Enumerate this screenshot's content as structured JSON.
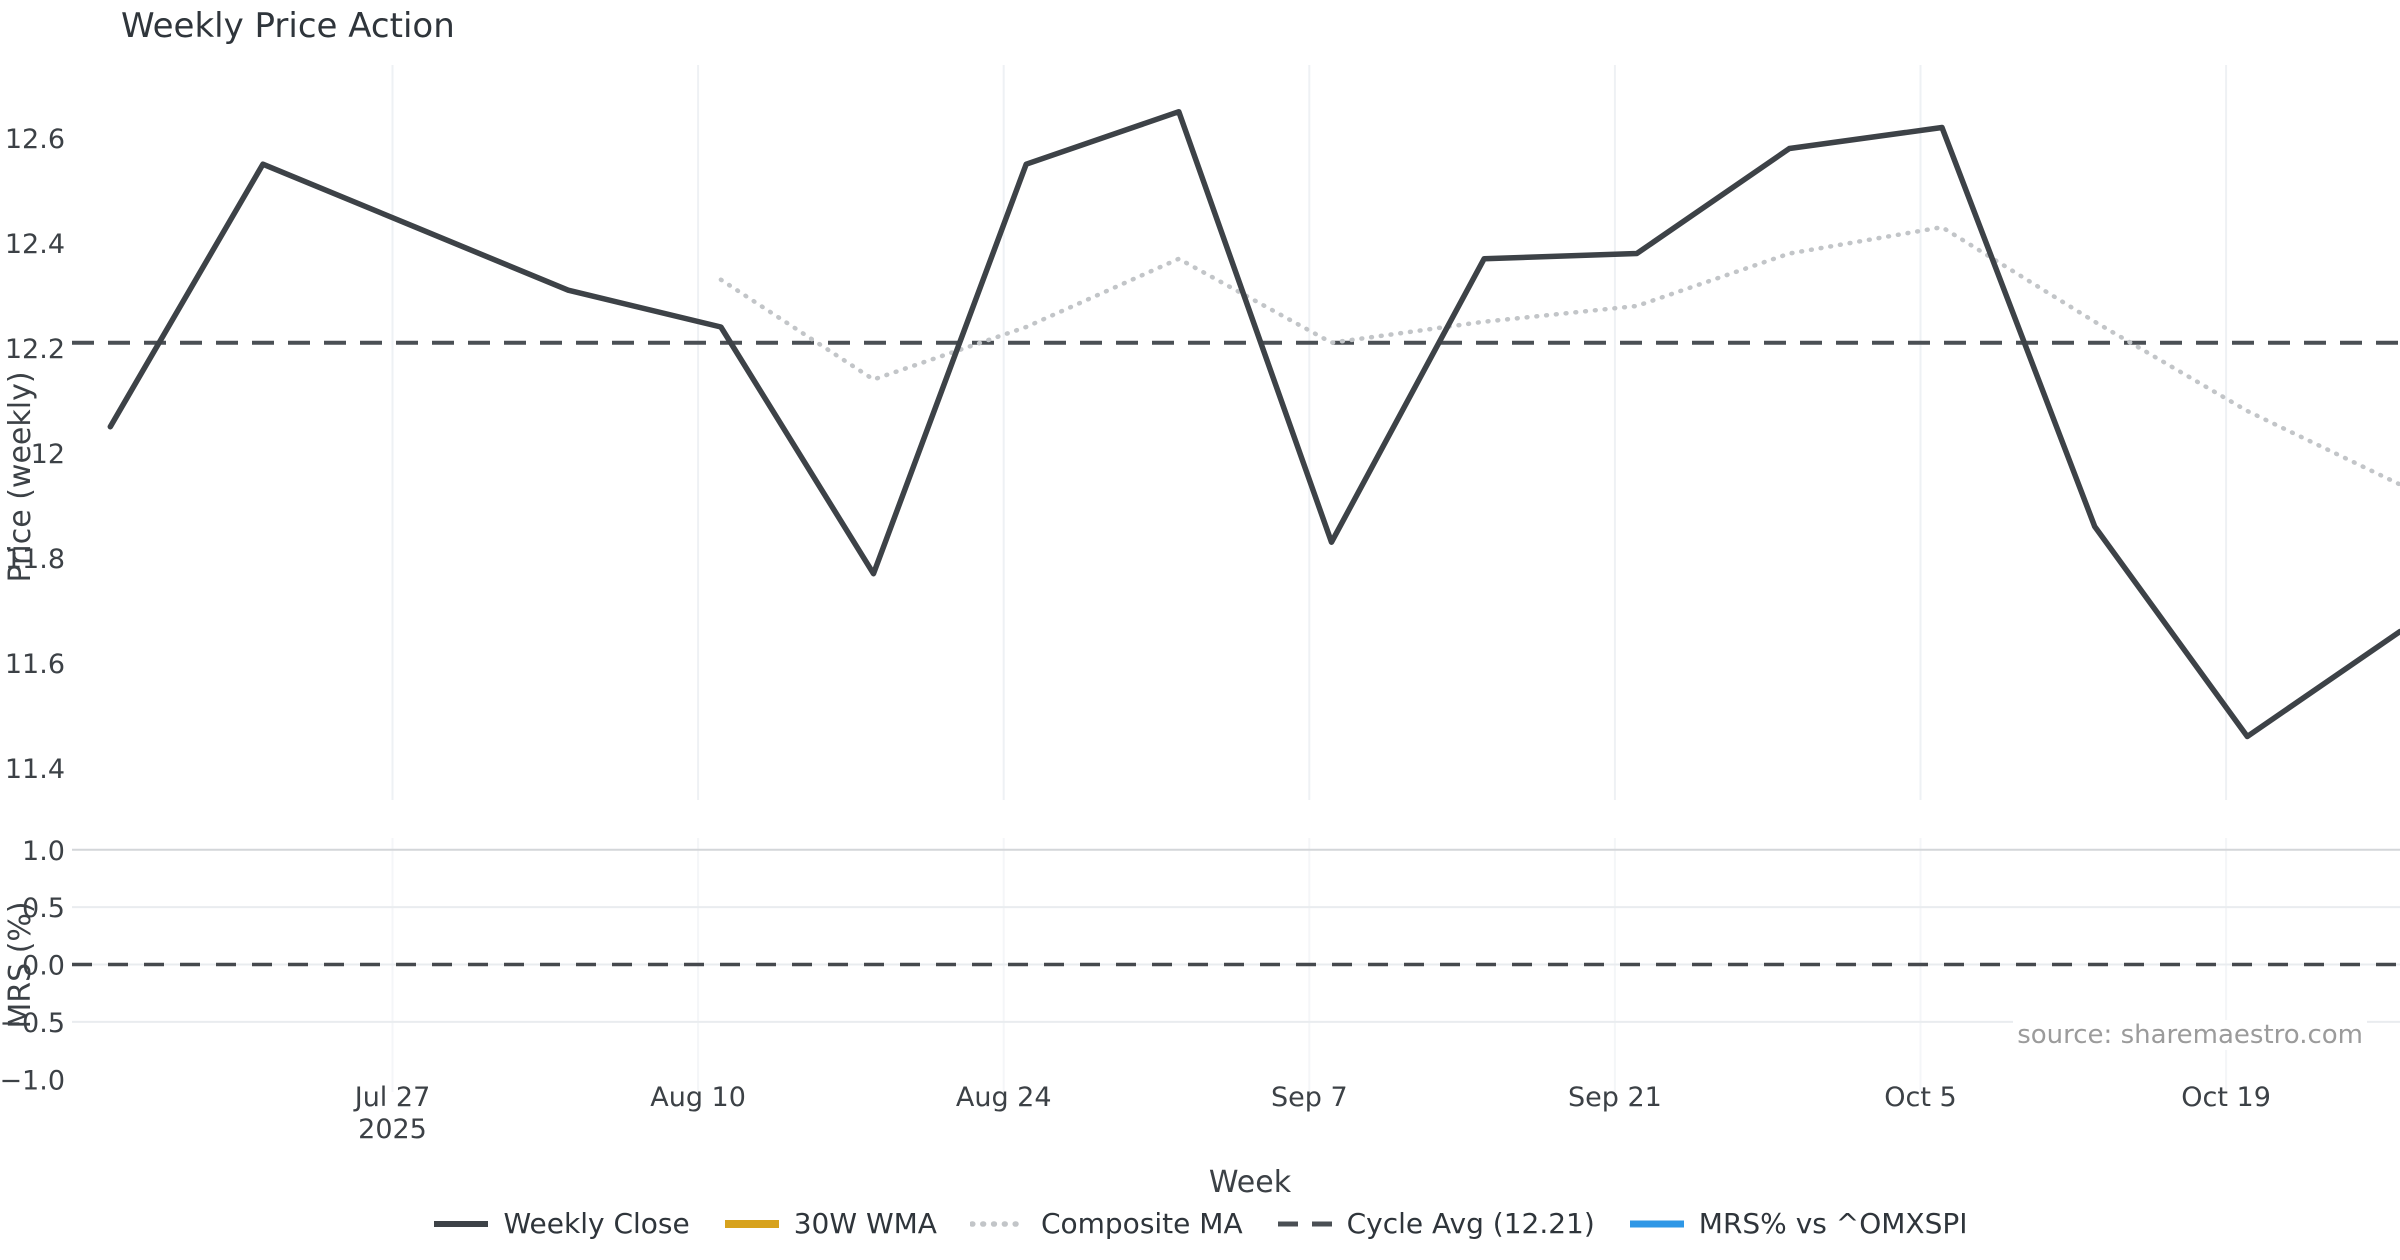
{
  "title": "Weekly Price Action",
  "source_note": "source: sharemaestro.com",
  "x_axis": {
    "label": "Week",
    "ticks": [
      {
        "label": "Jul 27",
        "sublabel": "2025"
      },
      {
        "label": "Aug 10"
      },
      {
        "label": "Aug 24"
      },
      {
        "label": "Sep 7"
      },
      {
        "label": "Sep 21"
      },
      {
        "label": "Oct 5"
      },
      {
        "label": "Oct 19"
      }
    ]
  },
  "price_axis": {
    "label": "Price (weekly)",
    "tick_labels": [
      "12.6",
      "12.4",
      "12.2",
      "12",
      "11.8",
      "11.6",
      "11.4"
    ],
    "tick_values": [
      12.6,
      12.4,
      12.2,
      12.0,
      11.8,
      11.6,
      11.4
    ]
  },
  "mrs_axis": {
    "label": "MRS (%)",
    "tick_labels": [
      "1.0",
      "0.5",
      "0.0",
      "−0.5",
      "−1.0"
    ],
    "tick_values": [
      1.0,
      0.5,
      0.0,
      -0.5,
      -1.0
    ]
  },
  "legend": [
    {
      "label": "Weekly Close",
      "type": "solid",
      "color": "#3d4247",
      "weight": 6
    },
    {
      "label": "30W WMA",
      "type": "solid",
      "color": "#d7a21d",
      "weight": 8
    },
    {
      "label": "Composite MA",
      "type": "dotted",
      "color": "#c2c5c8",
      "weight": 5.5
    },
    {
      "label": "Cycle Avg (12.21)",
      "type": "dashed",
      "color": "#4a4f54",
      "weight": 5
    },
    {
      "label": "MRS% vs ^OMXSPI",
      "type": "solid",
      "color": "#2e97e6",
      "weight": 7
    }
  ],
  "colors": {
    "close": "#3d4247",
    "wma": "#d7a21d",
    "composite": "#c2c5c8",
    "cycle_avg": "#4a4f54",
    "mrs": "#2e97e6",
    "grid_light": "#eef1f4",
    "grid_faint": "#f4f6f8",
    "grid_strong": "#d3d6d9",
    "grid_h": "#e9ecef",
    "text": "#3c4146",
    "muted": "#9b9b9b"
  },
  "chart_data": {
    "type": "line",
    "title": "Weekly Price Action",
    "xlabel": "Week",
    "x": [
      "2025-07-14",
      "2025-07-21",
      "2025-07-28",
      "2025-08-04",
      "2025-08-11",
      "2025-08-18",
      "2025-08-25",
      "2025-09-01",
      "2025-09-08",
      "2025-09-15",
      "2025-09-22",
      "2025-09-29",
      "2025-10-06",
      "2025-10-13",
      "2025-10-20",
      "2025-10-27"
    ],
    "x_tick_labels": [
      "Jul 27 2025",
      "Aug 10",
      "Aug 24",
      "Sep 7",
      "Sep 21",
      "Oct 5",
      "Oct 19"
    ],
    "legend_position": "bottom",
    "panels": [
      {
        "ylabel": "Price (weekly)",
        "ylim": [
          11.34,
          12.74
        ],
        "yticks": [
          11.4,
          11.6,
          11.8,
          12.0,
          12.2,
          12.4,
          12.6
        ],
        "grid": "vertical only",
        "series": [
          {
            "name": "Weekly Close",
            "style": "solid",
            "color": "#3d4247",
            "values": [
              12.05,
              12.55,
              12.43,
              12.31,
              12.24,
              11.77,
              12.55,
              12.65,
              11.83,
              12.37,
              12.38,
              12.58,
              12.62,
              11.86,
              11.46,
              11.66
            ]
          },
          {
            "name": "30W WMA",
            "style": "solid",
            "color": "#d7a21d",
            "visible_in_plot": false,
            "values": []
          },
          {
            "name": "Composite MA",
            "style": "dotted",
            "color": "#c2c5c8",
            "values": [
              null,
              null,
              null,
              null,
              12.33,
              12.14,
              12.24,
              12.37,
              12.21,
              12.25,
              12.28,
              12.38,
              12.43,
              12.25,
              12.08,
              11.94
            ]
          },
          {
            "name": "Cycle Avg (12.21)",
            "style": "dashed-horizontal",
            "color": "#4a4f54",
            "value": 12.21
          }
        ]
      },
      {
        "ylabel": "MRS (%)",
        "ylim": [
          -1.15,
          1.15
        ],
        "yticks": [
          -1.0,
          -0.5,
          0.0,
          0.5,
          1.0
        ],
        "grid": "horizontal + faint vertical",
        "series": [
          {
            "name": "MRS% vs ^OMXSPI",
            "style": "solid",
            "color": "#2e97e6",
            "visible_in_plot": false,
            "values": []
          },
          {
            "name": "zero-line",
            "style": "dashed-horizontal",
            "color": "#45494d",
            "value": 0.0
          }
        ]
      }
    ]
  }
}
